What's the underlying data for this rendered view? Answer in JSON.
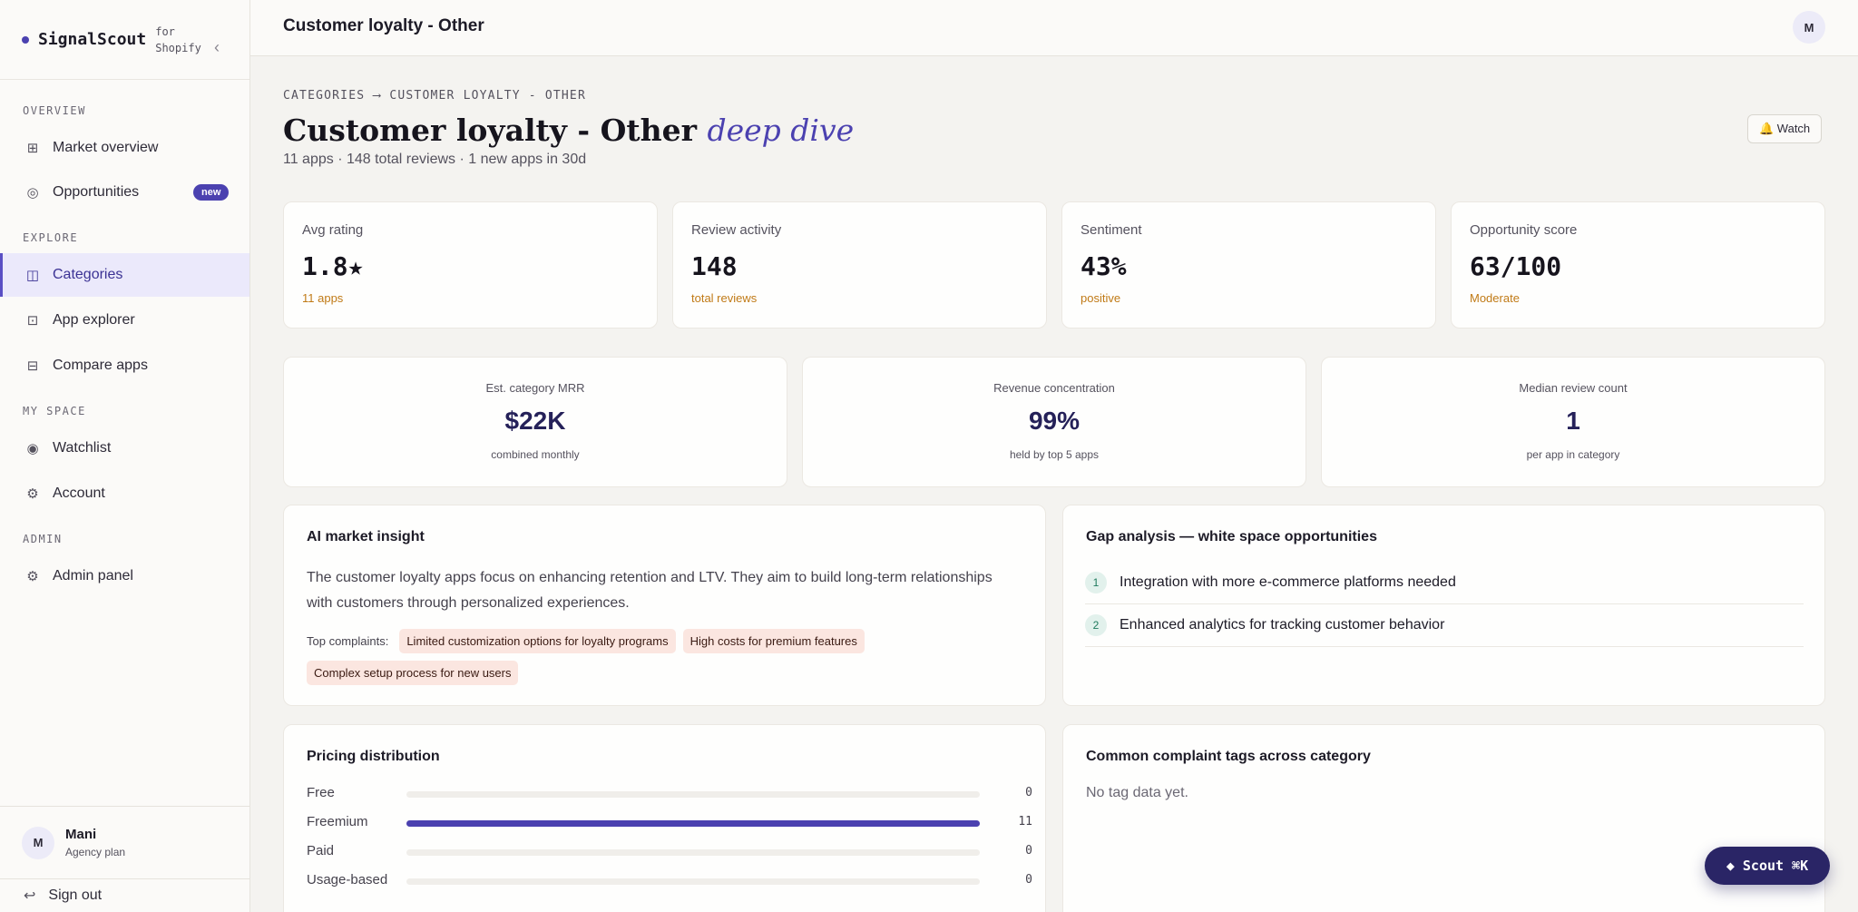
{
  "brand": {
    "name": "SignalScout",
    "suffix": "for Shopify",
    "collapse_icon": "chevron-left-icon"
  },
  "sidebar": {
    "sections": [
      "OVERVIEW",
      "EXPLORE",
      "MY SPACE",
      "ADMIN"
    ],
    "items": [
      {
        "label": "Market overview",
        "icon": "grid-icon"
      },
      {
        "label": "Opportunities",
        "icon": "target-icon",
        "badge": "new"
      },
      {
        "label": "Categories",
        "icon": "columns-icon",
        "active": true
      },
      {
        "label": "App explorer",
        "icon": "box-icon"
      },
      {
        "label": "Compare apps",
        "icon": "compare-icon"
      },
      {
        "label": "Watchlist",
        "icon": "eye-icon"
      },
      {
        "label": "Account",
        "icon": "gear-icon"
      },
      {
        "label": "Admin panel",
        "icon": "gear-icon"
      }
    ],
    "user": {
      "initial": "M",
      "name": "Mani",
      "plan": "Agency plan"
    },
    "sign_out": "Sign out"
  },
  "topbar": {
    "title": "Customer loyalty - Other",
    "avatar_initial": "M"
  },
  "page": {
    "breadcrumb": "CATEGORIES ⟶ CUSTOMER LOYALTY - OTHER",
    "title": "Customer loyalty - Other",
    "title_accent": "deep dive",
    "subtitle": "11 apps · 148 total reviews · 1 new apps in 30d",
    "watch_label": "🔔 Watch"
  },
  "stats": [
    {
      "label": "Avg rating",
      "value": "1.8★",
      "sub": "11 apps"
    },
    {
      "label": "Review activity",
      "value": "148",
      "sub": "total reviews"
    },
    {
      "label": "Sentiment",
      "value": "43%",
      "sub": "positive"
    },
    {
      "label": "Opportunity score",
      "value": "63/100",
      "sub": "Moderate"
    }
  ],
  "kpis": [
    {
      "label": "Est. category MRR",
      "value": "$22K",
      "sub": "combined monthly"
    },
    {
      "label": "Revenue concentration",
      "value": "99%",
      "sub": "held by top 5 apps"
    },
    {
      "label": "Median review count",
      "value": "1",
      "sub": "per app in category"
    }
  ],
  "insight": {
    "title": "AI market insight",
    "text": "The customer loyalty apps focus on enhancing retention and LTV. They aim to build long-term relationships with customers through personalized experiences.",
    "complaints_label": "Top complaints:",
    "complaints": [
      "Limited customization options for loyalty programs",
      "High costs for premium features",
      "Complex setup process for new users"
    ]
  },
  "gaps": {
    "title": "Gap analysis — white space opportunities",
    "items": [
      {
        "num": "1",
        "text": "Integration with more e-commerce platforms needed"
      },
      {
        "num": "2",
        "text": "Enhanced analytics for tracking customer behavior"
      }
    ]
  },
  "pricing": {
    "title": "Pricing distribution",
    "max": 11,
    "rows": [
      {
        "label": "Free",
        "count": 0
      },
      {
        "label": "Freemium",
        "count": 11
      },
      {
        "label": "Paid",
        "count": 0
      },
      {
        "label": "Usage-based",
        "count": 0
      }
    ]
  },
  "tags": {
    "title": "Common complaint tags across category",
    "empty": "No tag data yet."
  },
  "scout": {
    "label": "◆ Scout ⌘K"
  },
  "colors": {
    "accent": "#4b41b0",
    "warning": "#c07a16",
    "scout_bg": "#2a2566"
  }
}
